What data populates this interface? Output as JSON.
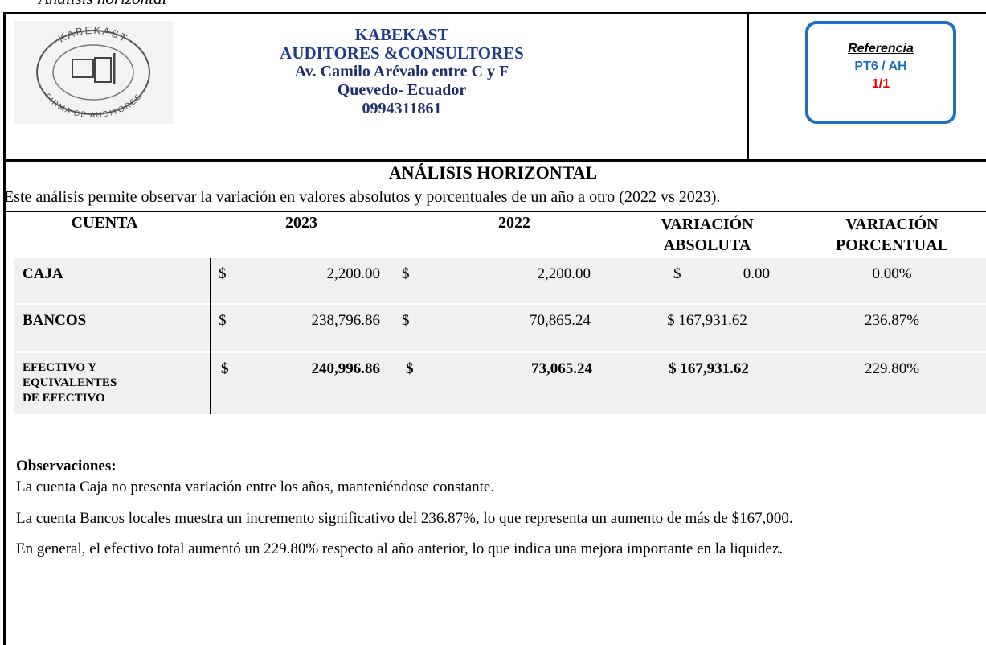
{
  "page_label": "Análisis horizontal",
  "header": {
    "logo": {
      "top": "KABEKAST",
      "bottom": "FIRMA DE AUDITORES"
    },
    "lines": [
      "KABEKAST",
      "AUDITORES &CONSULTORES",
      "Av. Camilo Arévalo entre C y F",
      "Quevedo- Ecuador",
      "0994311861"
    ],
    "reference": {
      "label": "Referencia",
      "code": "PT6 / AH",
      "page": "1/1"
    }
  },
  "title": "ANÁLISIS HORIZONTAL",
  "description": "Este análisis permite observar la variación en valores absolutos y porcentuales de un año a otro (2022 vs 2023).",
  "table": {
    "columns": [
      "CUENTA",
      "2023",
      "2022",
      [
        "VARIACIÓN",
        "ABSOLUTA"
      ],
      [
        "VARIACIÓN",
        "PORCENTUAL"
      ]
    ],
    "rows": [
      {
        "account": [
          "CAJA"
        ],
        "y2023": [
          "$",
          "2,200.00"
        ],
        "y2022": [
          "$",
          "2,200.00"
        ],
        "absolute": [
          "$",
          "0.00"
        ],
        "percent": "0.00%"
      },
      {
        "account": [
          "BANCOS"
        ],
        "y2023": [
          "$",
          "238,796.86"
        ],
        "y2022": [
          "$",
          "70,865.24"
        ],
        "absolute": [
          "$ 167,931.62"
        ],
        "percent": "236.87%"
      },
      {
        "account": [
          "EFECTIVO Y",
          "EQUIVALENTES",
          "DE EFECTIVO"
        ],
        "y2023": [
          "$",
          "240,996.86"
        ],
        "y2022": [
          "$",
          "73,065.24"
        ],
        "absolute": [
          "$ 167,931.62"
        ],
        "percent": "229.80%"
      }
    ]
  },
  "observations": {
    "heading": "Observaciones:",
    "paragraphs": [
      "La cuenta Caja no presenta variación entre los años, manteniéndose constante.",
      "La cuenta Bancos locales muestra un incremento significativo del 236.87%, lo que representa un aumento de más de $167,000.",
      "En general, el efectivo total aumentó un 229.80% respecto al año anterior, lo que indica una mejora importante en la liquidez."
    ]
  }
}
